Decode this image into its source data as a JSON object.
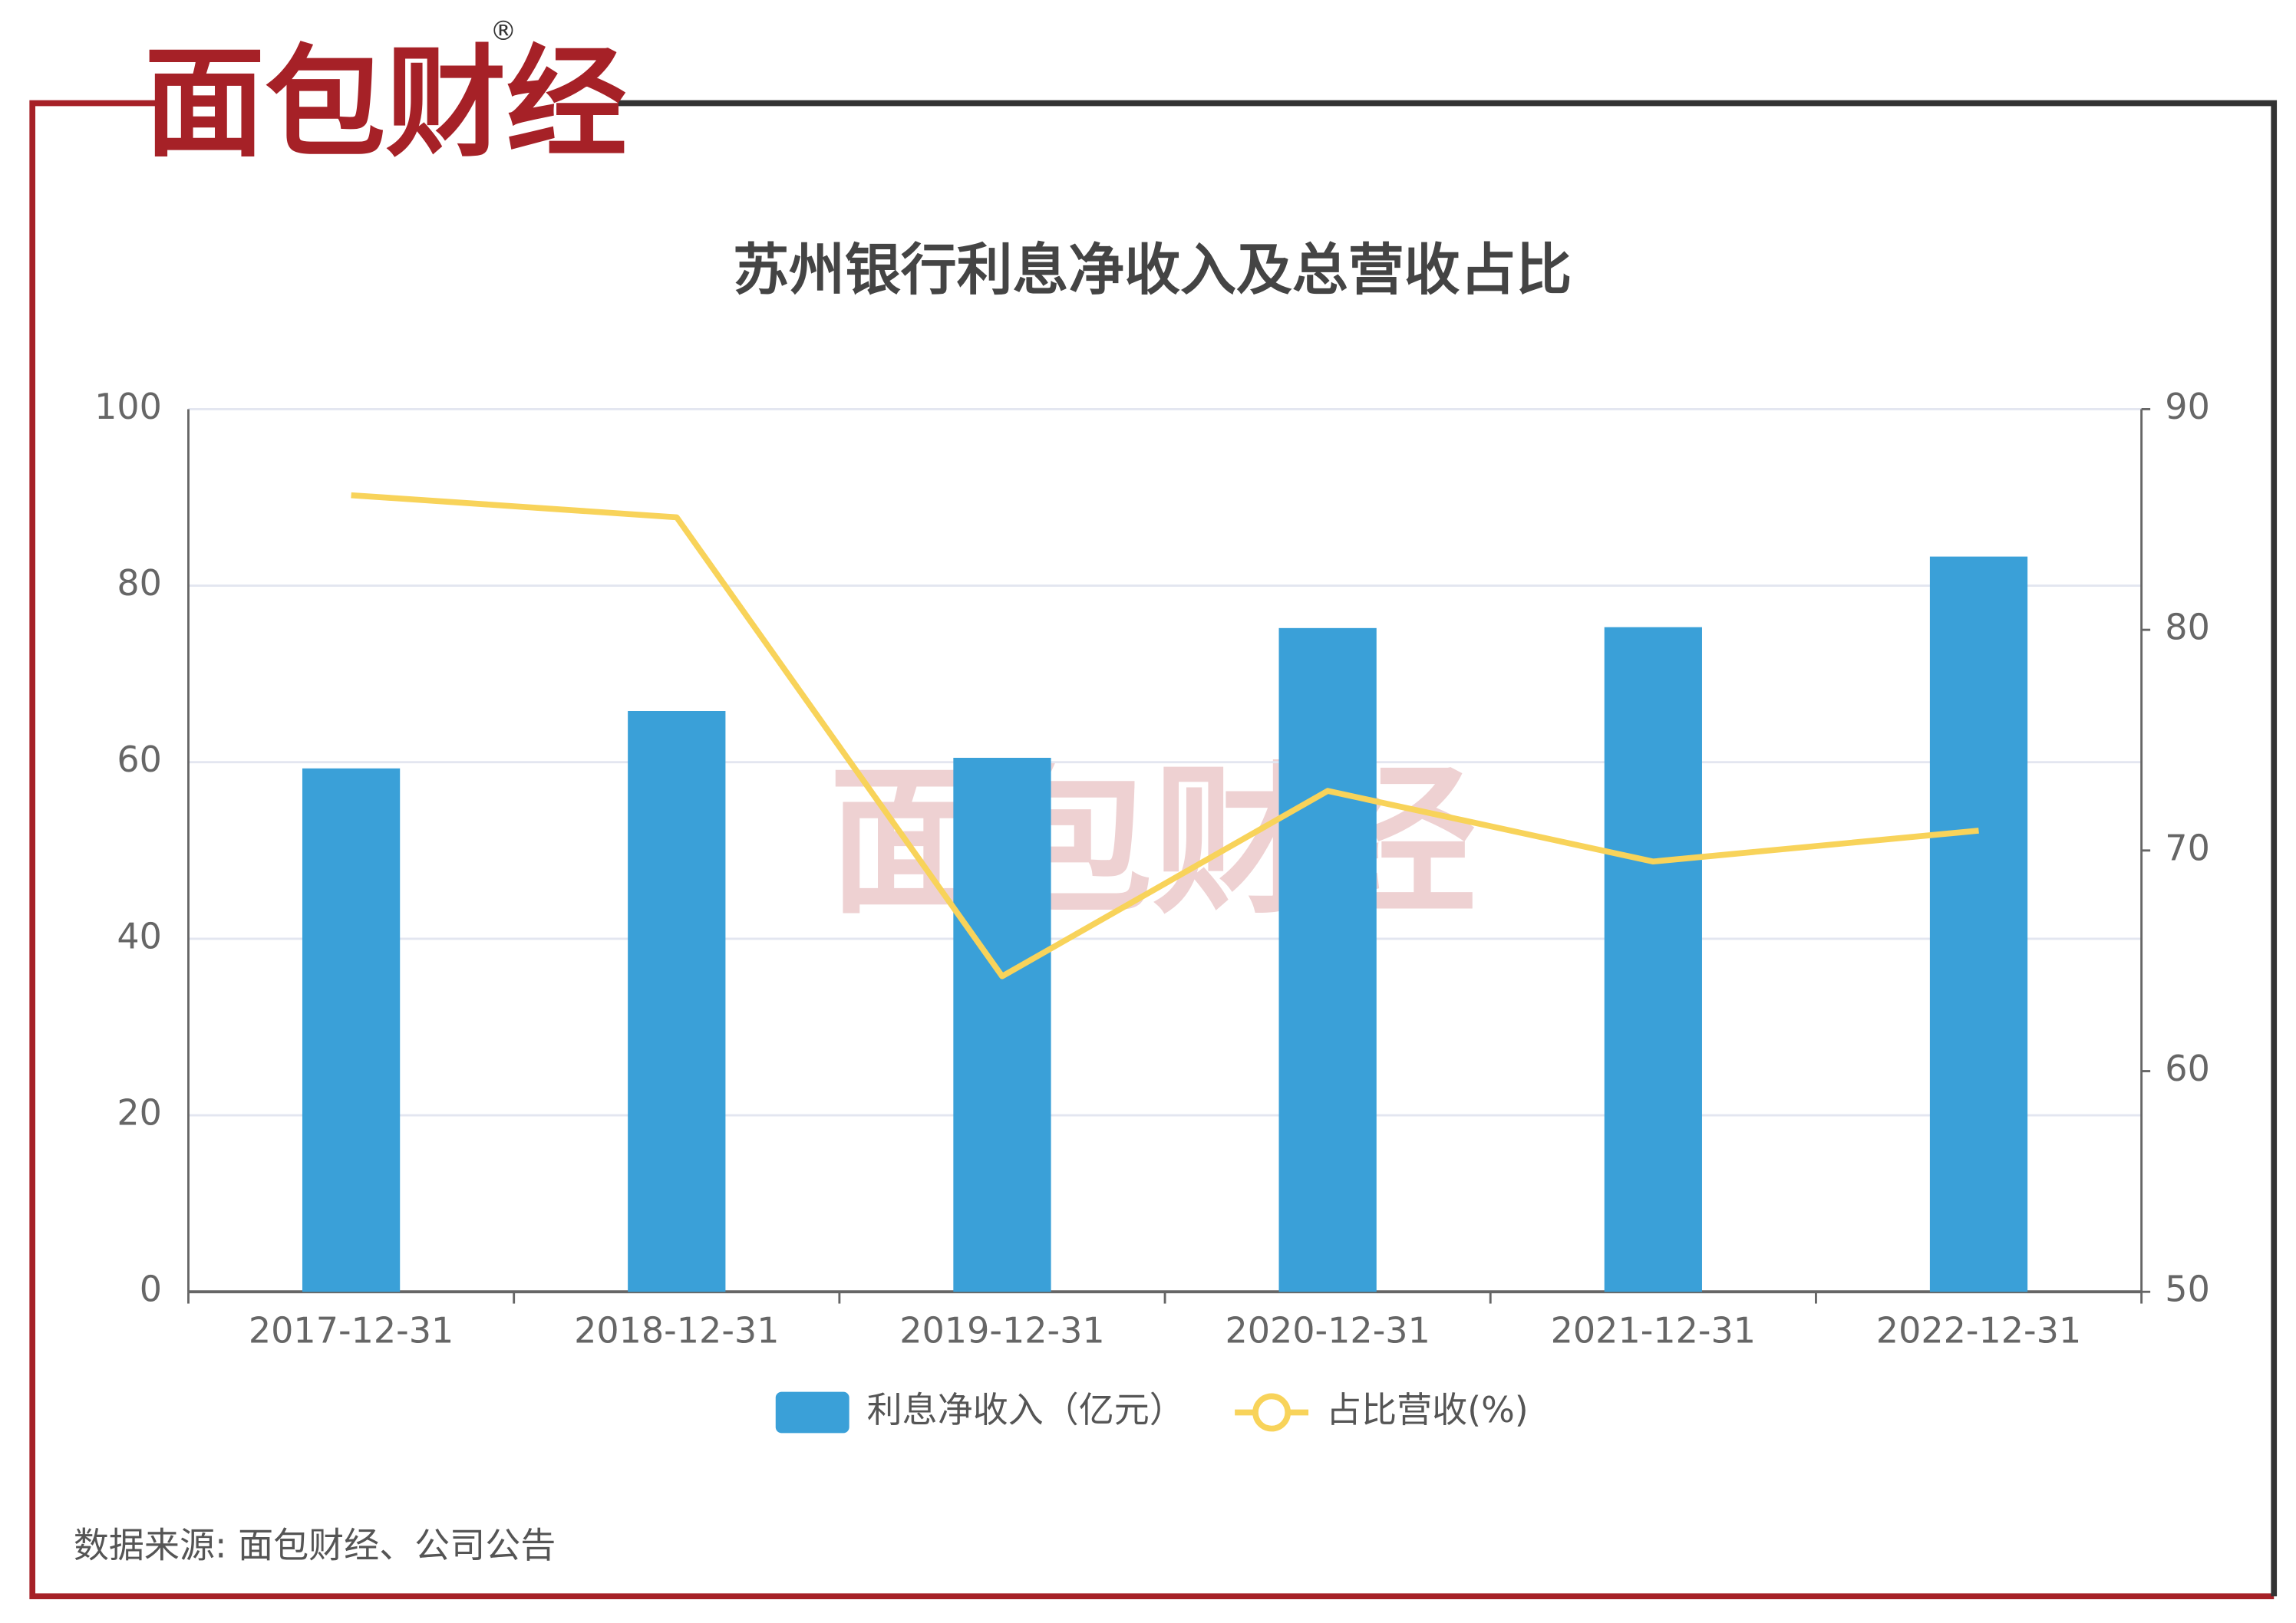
{
  "logo": "面包财经",
  "logo_mark": "®",
  "watermark": "面包财经",
  "source": "数据来源: 面包财经、公司公告",
  "chart_data": {
    "type": "bar-line",
    "title": "苏州银行利息净收入及总营收占比",
    "categories": [
      "2017-12-31",
      "2018-12-31",
      "2019-12-31",
      "2020-12-31",
      "2021-12-31",
      "2022-12-31"
    ],
    "series": [
      {
        "name": "利息净收入（亿元）",
        "type": "bar",
        "color": "#3aa0d8",
        "values": [
          59.3,
          65.8,
          60.5,
          75.2,
          75.3,
          83.3
        ]
      },
      {
        "name": "占比营收(%)",
        "type": "line",
        "axis": "y2",
        "color": "#f8d35a",
        "values": [
          86.1,
          85.1,
          64.3,
          72.7,
          69.5,
          70.9
        ]
      }
    ],
    "ylim": [
      0,
      100
    ],
    "yticks": [
      0,
      20,
      40,
      60,
      80,
      100
    ],
    "y2lim": [
      50,
      90
    ],
    "y2ticks": [
      50,
      60,
      70,
      80,
      90
    ],
    "grid": true
  }
}
